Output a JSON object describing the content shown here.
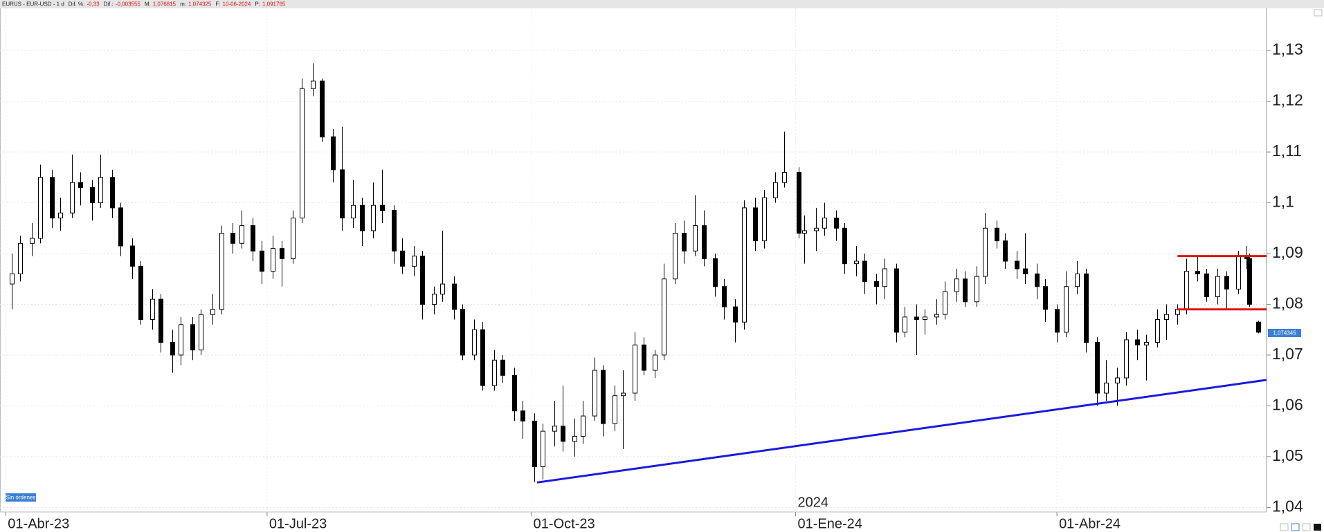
{
  "chart_data": {
    "type": "candlestick",
    "symbol": "EURUS - EUR-USD - 1 d",
    "header": [
      {
        "label": "Dif. %:",
        "value": "-0,33"
      },
      {
        "label": "Dif.:",
        "value": "-0,003555"
      },
      {
        "label": "M:",
        "value": "1,076815"
      },
      {
        "label": "m:",
        "value": "1,074325"
      },
      {
        "label": "F:",
        "value": "10-06-2024"
      },
      {
        "label": "P:",
        "value": "1,091765"
      }
    ],
    "status": "Sin órdenes",
    "up_color": "#ffffff",
    "down_color": "#000000",
    "x": [
      "2023-04-03",
      "2023-04-06",
      "2023-04-10",
      "2023-04-13",
      "2023-04-17",
      "2023-04-20",
      "2023-04-24",
      "2023-04-27",
      "2023-05-01",
      "2023-05-04",
      "2023-05-08",
      "2023-05-11",
      "2023-05-15",
      "2023-05-18",
      "2023-05-22",
      "2023-05-25",
      "2023-05-29",
      "2023-06-01",
      "2023-06-05",
      "2023-06-08",
      "2023-06-12",
      "2023-06-15",
      "2023-06-19",
      "2023-06-22",
      "2023-06-26",
      "2023-06-29",
      "2023-07-03",
      "2023-07-06",
      "2023-07-10",
      "2023-07-13",
      "2023-07-17",
      "2023-07-20",
      "2023-07-24",
      "2023-07-27",
      "2023-07-31",
      "2023-08-03",
      "2023-08-07",
      "2023-08-10",
      "2023-08-14",
      "2023-08-17",
      "2023-08-21",
      "2023-08-24",
      "2023-08-28",
      "2023-08-31",
      "2023-09-04",
      "2023-09-07",
      "2023-09-11",
      "2023-09-14",
      "2023-09-18",
      "2023-09-21",
      "2023-09-25",
      "2023-09-28",
      "2023-10-02",
      "2023-10-05",
      "2023-10-09",
      "2023-10-12",
      "2023-10-16",
      "2023-10-19",
      "2023-10-23",
      "2023-10-26",
      "2023-10-30",
      "2023-11-02",
      "2023-11-06",
      "2023-11-09",
      "2023-11-13",
      "2023-11-16",
      "2023-11-20",
      "2023-11-23",
      "2023-11-27",
      "2023-11-30",
      "2023-12-04",
      "2023-12-07",
      "2023-12-11",
      "2023-12-14",
      "2023-12-18",
      "2023-12-21",
      "2023-12-25",
      "2023-12-28",
      "2024-01-02",
      "2024-01-04",
      "2024-01-08",
      "2024-01-11",
      "2024-01-15",
      "2024-01-18",
      "2024-01-22",
      "2024-01-25",
      "2024-01-29",
      "2024-02-01",
      "2024-02-05",
      "2024-02-08",
      "2024-02-12",
      "2024-02-15",
      "2024-02-19",
      "2024-02-22",
      "2024-02-26",
      "2024-02-29",
      "2024-03-04",
      "2024-03-07",
      "2024-03-11",
      "2024-03-14",
      "2024-03-18",
      "2024-03-21",
      "2024-03-25",
      "2024-03-28",
      "2024-04-01",
      "2024-04-04",
      "2024-04-08",
      "2024-04-11",
      "2024-04-15",
      "2024-04-18",
      "2024-04-22",
      "2024-04-25",
      "2024-04-29",
      "2024-05-02",
      "2024-05-06",
      "2024-05-09",
      "2024-05-13",
      "2024-05-16",
      "2024-05-20",
      "2024-05-23",
      "2024-05-27",
      "2024-05-30",
      "2024-06-03",
      "2024-06-06",
      "2024-06-07",
      "2024-06-10"
    ],
    "ohlc": [
      [
        1.084,
        1.09,
        1.079,
        1.086
      ],
      [
        1.086,
        1.0935,
        1.0845,
        1.092
      ],
      [
        1.092,
        1.096,
        1.0895,
        1.093
      ],
      [
        1.093,
        1.1075,
        1.092,
        1.105
      ],
      [
        1.105,
        1.1065,
        1.095,
        1.097
      ],
      [
        1.097,
        1.101,
        1.0945,
        1.098
      ],
      [
        1.098,
        1.1095,
        1.097,
        1.104
      ],
      [
        1.104,
        1.106,
        1.0995,
        1.103
      ],
      [
        1.103,
        1.1045,
        1.0965,
        1.1
      ],
      [
        1.1,
        1.1095,
        1.099,
        1.105
      ],
      [
        1.105,
        1.1065,
        1.097,
        1.099
      ],
      [
        1.099,
        1.1,
        1.0895,
        1.0915
      ],
      [
        1.0915,
        1.093,
        1.085,
        1.0875
      ],
      [
        1.0875,
        1.0885,
        1.076,
        1.077
      ],
      [
        1.077,
        1.083,
        1.075,
        1.081
      ],
      [
        1.081,
        1.082,
        1.0705,
        1.0725
      ],
      [
        1.0725,
        1.075,
        1.0665,
        1.07
      ],
      [
        1.07,
        1.0775,
        1.068,
        1.076
      ],
      [
        1.076,
        1.0775,
        1.069,
        1.071
      ],
      [
        1.071,
        1.079,
        1.07,
        1.078
      ],
      [
        1.078,
        1.082,
        1.076,
        1.079
      ],
      [
        1.079,
        1.0955,
        1.078,
        1.094
      ],
      [
        1.094,
        1.096,
        1.09,
        1.092
      ],
      [
        1.092,
        1.0985,
        1.091,
        1.0955
      ],
      [
        1.0955,
        1.097,
        1.0885,
        1.0905
      ],
      [
        1.0905,
        1.0925,
        1.084,
        1.0865
      ],
      [
        1.0865,
        1.0935,
        1.085,
        1.091
      ],
      [
        1.091,
        1.0925,
        1.0835,
        1.089
      ],
      [
        1.089,
        1.0985,
        1.088,
        1.097
      ],
      [
        1.097,
        1.1245,
        1.096,
        1.1225
      ],
      [
        1.1225,
        1.1275,
        1.121,
        1.124
      ],
      [
        1.124,
        1.1245,
        1.112,
        1.113
      ],
      [
        1.113,
        1.1145,
        1.104,
        1.1065
      ],
      [
        1.1065,
        1.115,
        1.0945,
        1.097
      ],
      [
        1.097,
        1.1045,
        1.095,
        1.0995
      ],
      [
        1.0995,
        1.101,
        1.0915,
        1.0945
      ],
      [
        1.0945,
        1.104,
        1.093,
        1.0995
      ],
      [
        1.0995,
        1.1065,
        1.096,
        1.0985
      ],
      [
        1.0985,
        1.0995,
        1.088,
        1.0905
      ],
      [
        1.0905,
        1.093,
        1.086,
        1.0875
      ],
      [
        1.0875,
        1.0915,
        1.0855,
        1.0895
      ],
      [
        1.0895,
        1.0905,
        1.077,
        1.08
      ],
      [
        1.08,
        1.0835,
        1.078,
        1.082
      ],
      [
        1.082,
        1.0945,
        1.0805,
        1.084
      ],
      [
        1.084,
        1.0855,
        1.077,
        1.079
      ],
      [
        1.079,
        1.08,
        1.069,
        1.07
      ],
      [
        1.07,
        1.077,
        1.069,
        1.075
      ],
      [
        1.075,
        1.0765,
        1.063,
        1.064
      ],
      [
        1.064,
        1.071,
        1.063,
        1.069
      ],
      [
        1.069,
        1.07,
        1.0645,
        1.066
      ],
      [
        1.066,
        1.0675,
        1.057,
        1.059
      ],
      [
        1.059,
        1.061,
        1.0535,
        1.057
      ],
      [
        1.057,
        1.0585,
        1.045,
        1.048
      ],
      [
        1.048,
        1.0565,
        1.0455,
        1.055
      ],
      [
        1.055,
        1.061,
        1.052,
        1.056
      ],
      [
        1.056,
        1.064,
        1.051,
        1.053
      ],
      [
        1.053,
        1.0575,
        1.05,
        1.054
      ],
      [
        1.054,
        1.061,
        1.0525,
        1.058
      ],
      [
        1.058,
        1.0695,
        1.057,
        1.067
      ],
      [
        1.067,
        1.068,
        1.054,
        1.0565
      ],
      [
        1.0565,
        1.064,
        1.055,
        1.062
      ],
      [
        1.062,
        1.067,
        1.0515,
        1.0625
      ],
      [
        1.0625,
        1.0745,
        1.061,
        1.072
      ],
      [
        1.072,
        1.0735,
        1.066,
        1.067
      ],
      [
        1.067,
        1.071,
        1.0655,
        1.07
      ],
      [
        1.07,
        1.088,
        1.069,
        1.085
      ],
      [
        1.085,
        1.096,
        1.084,
        1.094
      ],
      [
        1.094,
        1.0965,
        1.088,
        1.0905
      ],
      [
        1.0905,
        1.1015,
        1.0895,
        1.0955
      ],
      [
        1.0955,
        1.0985,
        1.0875,
        1.089
      ],
      [
        1.089,
        1.09,
        1.0815,
        1.0835
      ],
      [
        1.0835,
        1.085,
        1.077,
        1.0795
      ],
      [
        1.0795,
        1.081,
        1.0725,
        1.0765
      ],
      [
        1.0765,
        1.1005,
        1.075,
        1.099
      ],
      [
        1.099,
        1.101,
        1.0905,
        1.0925
      ],
      [
        1.0925,
        1.1025,
        1.091,
        1.101
      ],
      [
        1.101,
        1.106,
        1.1,
        1.104
      ],
      [
        1.104,
        1.114,
        1.103,
        1.106
      ],
      [
        1.106,
        1.107,
        1.093,
        1.094
      ],
      [
        1.094,
        1.0975,
        1.088,
        1.0945
      ],
      [
        1.0945,
        1.099,
        1.0905,
        1.095
      ],
      [
        1.095,
        1.1,
        1.0935,
        1.097
      ],
      [
        1.097,
        1.0985,
        1.0925,
        1.095
      ],
      [
        1.095,
        1.096,
        1.086,
        1.088
      ],
      [
        1.088,
        1.0915,
        1.0855,
        1.0885
      ],
      [
        1.0885,
        1.09,
        1.082,
        1.0845
      ],
      [
        1.0845,
        1.086,
        1.08,
        1.0835
      ],
      [
        1.0835,
        1.089,
        1.081,
        1.087
      ],
      [
        1.087,
        1.088,
        1.0725,
        1.0745
      ],
      [
        1.0745,
        1.0795,
        1.0735,
        1.0775
      ],
      [
        1.0775,
        1.08,
        1.07,
        1.077
      ],
      [
        1.077,
        1.079,
        1.074,
        1.0775
      ],
      [
        1.0775,
        1.081,
        1.076,
        1.078
      ],
      [
        1.078,
        1.0845,
        1.077,
        1.0825
      ],
      [
        1.0825,
        1.087,
        1.0805,
        1.085
      ],
      [
        1.085,
        1.0865,
        1.0795,
        1.0805
      ],
      [
        1.0805,
        1.0875,
        1.0795,
        1.0855
      ],
      [
        1.0855,
        1.098,
        1.084,
        1.095
      ],
      [
        1.095,
        1.0965,
        1.091,
        1.0925
      ],
      [
        1.0925,
        1.094,
        1.087,
        1.0885
      ],
      [
        1.0885,
        1.0905,
        1.085,
        1.087
      ],
      [
        1.087,
        1.094,
        1.084,
        1.086
      ],
      [
        1.086,
        1.088,
        1.081,
        1.0835
      ],
      [
        1.0835,
        1.085,
        1.0765,
        1.079
      ],
      [
        1.079,
        1.08,
        1.0725,
        1.0745
      ],
      [
        1.0745,
        1.0865,
        1.0735,
        1.0835
      ],
      [
        1.0835,
        1.0885,
        1.082,
        1.086
      ],
      [
        1.086,
        1.087,
        1.0705,
        1.0725
      ],
      [
        1.0725,
        1.0735,
        1.06,
        1.0625
      ],
      [
        1.0625,
        1.069,
        1.061,
        1.0645
      ],
      [
        1.0645,
        1.0675,
        1.06,
        1.0655
      ],
      [
        1.0655,
        1.0745,
        1.064,
        1.073
      ],
      [
        1.073,
        1.075,
        1.069,
        1.072
      ],
      [
        1.072,
        1.074,
        1.065,
        1.0725
      ],
      [
        1.0725,
        1.079,
        1.0715,
        1.077
      ],
      [
        1.077,
        1.08,
        1.073,
        1.078
      ],
      [
        1.078,
        1.08,
        1.076,
        1.079
      ],
      [
        1.079,
        1.089,
        1.078,
        1.0865
      ],
      [
        1.0865,
        1.0895,
        1.0845,
        1.086
      ],
      [
        1.086,
        1.087,
        1.0805,
        1.0815
      ],
      [
        1.0815,
        1.087,
        1.08,
        1.0855
      ],
      [
        1.0855,
        1.0865,
        1.079,
        1.083
      ],
      [
        1.083,
        1.0905,
        1.082,
        1.0895
      ],
      [
        1.0895,
        1.0915,
        1.087,
        1.089
      ],
      [
        1.089,
        1.09,
        1.0795,
        1.08
      ],
      [
        1.0765,
        1.0768,
        1.0743,
        1.0745
      ]
    ],
    "xlim": [
      "2023-03-30",
      "2024-06-13"
    ],
    "xticks": [
      {
        "value": "2023-04-01",
        "label": "01-Abr-23"
      },
      {
        "value": "2023-07-01",
        "label": "01-Jul-23"
      },
      {
        "value": "2023-10-01",
        "label": "01-Oct-23"
      },
      {
        "value": "2024-01-01",
        "label": "01-Ene-24"
      },
      {
        "value": "2024-04-01",
        "label": "01-Abr-24"
      }
    ],
    "year_marker": {
      "value": "2024-01-01",
      "label": "2024"
    },
    "ylim": [
      1.0395,
      1.1358
    ],
    "yticks": [
      {
        "value": 1.04,
        "label": "1,04"
      },
      {
        "value": 1.05,
        "label": "1,05"
      },
      {
        "value": 1.06,
        "label": "1,06"
      },
      {
        "value": 1.07,
        "label": "1,07"
      },
      {
        "value": 1.08,
        "label": "1,08"
      },
      {
        "value": 1.09,
        "label": "1,09"
      },
      {
        "value": 1.1,
        "label": "1,1"
      },
      {
        "value": 1.11,
        "label": "1,11"
      },
      {
        "value": 1.12,
        "label": "1,12"
      },
      {
        "value": 1.13,
        "label": "1,13"
      }
    ],
    "grid": true,
    "last_price": {
      "value": 1.074345,
      "label": "1,074345",
      "color": "#3b7fd4"
    },
    "levels": {
      "from": "2024-05-13",
      "values": [
        1.0895,
        1.079
      ],
      "color": "#e01010"
    },
    "trendline": {
      "x": [
        "2023-10-03",
        "2024-06-13"
      ],
      "values": [
        1.0449,
        1.0651
      ],
      "color": "#1a1adf"
    }
  }
}
